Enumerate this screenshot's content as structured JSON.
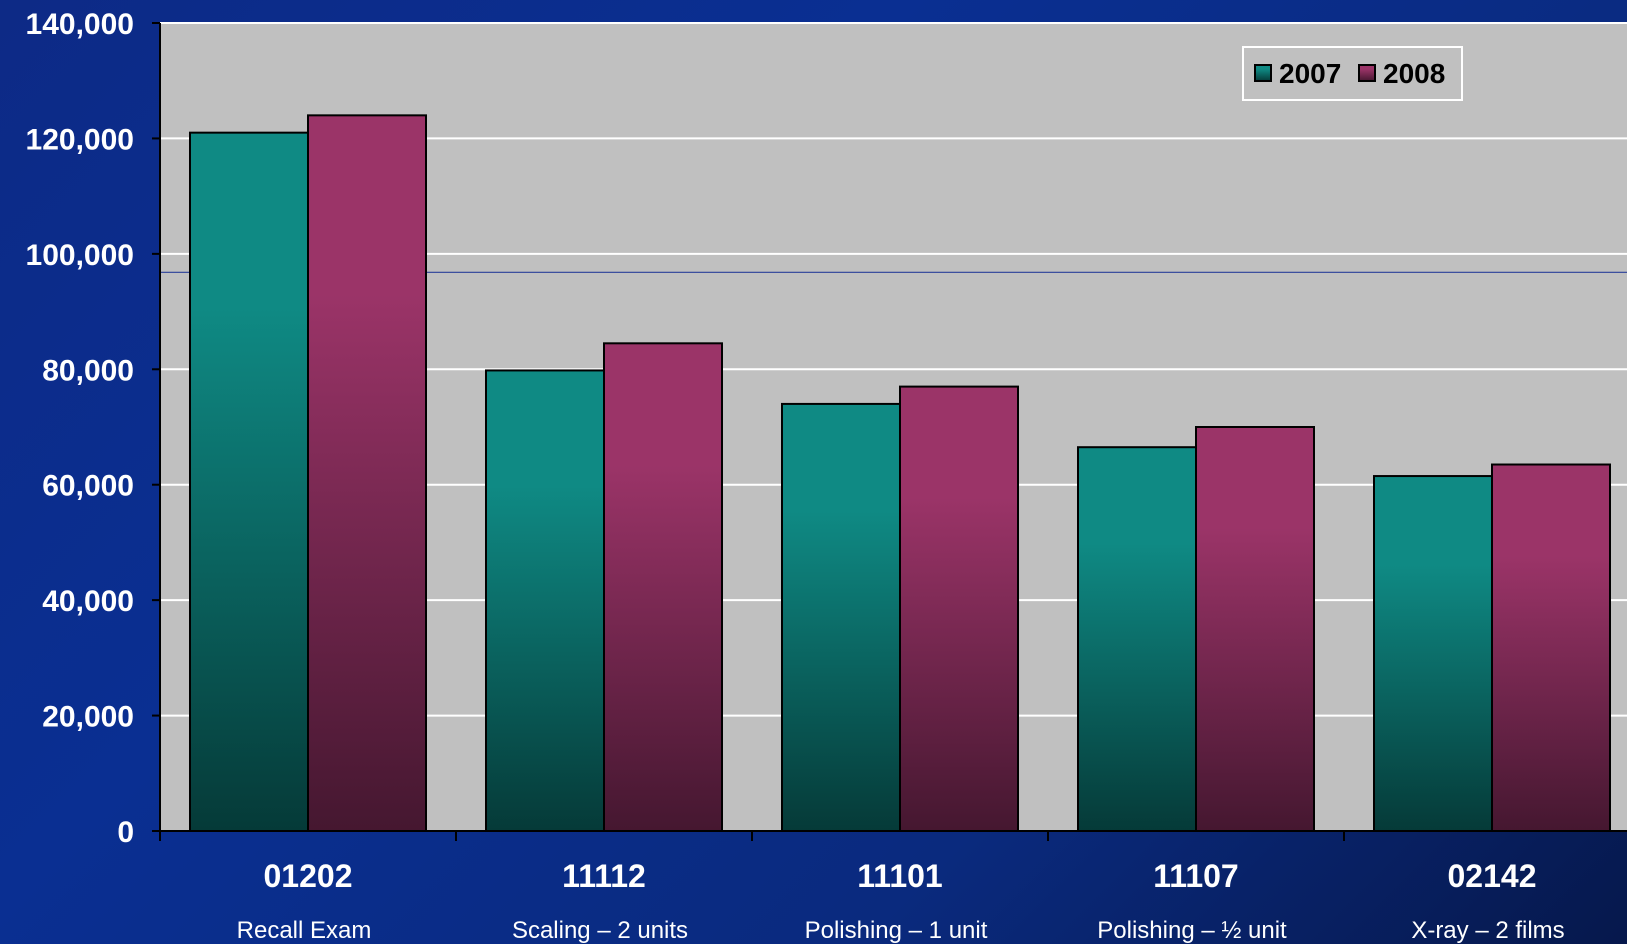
{
  "chart_data": {
    "type": "bar",
    "categories": [
      "01202",
      "11112",
      "11101",
      "11107",
      "02142"
    ],
    "category_sublabels": [
      "Recall Exam",
      "Scaling – 2 units",
      "Polishing – 1 unit",
      "Polishing – ½ unit",
      "X-ray  – 2 films"
    ],
    "series": [
      {
        "name": "2007",
        "values": [
          121000,
          79800,
          74000,
          66500,
          61500
        ],
        "color": "#0f8a84",
        "color_dark": "#053a38"
      },
      {
        "name": "2008",
        "values": [
          124000,
          84500,
          77000,
          70000,
          63500
        ],
        "color": "#9b3468",
        "color_dark": "#451730"
      }
    ],
    "ylim": [
      0,
      140000
    ],
    "yticks": [
      0,
      20000,
      40000,
      60000,
      80000,
      100000,
      120000,
      140000
    ],
    "ytick_labels": [
      "0",
      "20,000",
      "40,000",
      "60,000",
      "80,000",
      "100,000",
      "120,000",
      "140,000"
    ],
    "grid": true,
    "legend_position": "top-right",
    "plot_background": "#c0c0c0",
    "reference_line_value": 96800
  }
}
